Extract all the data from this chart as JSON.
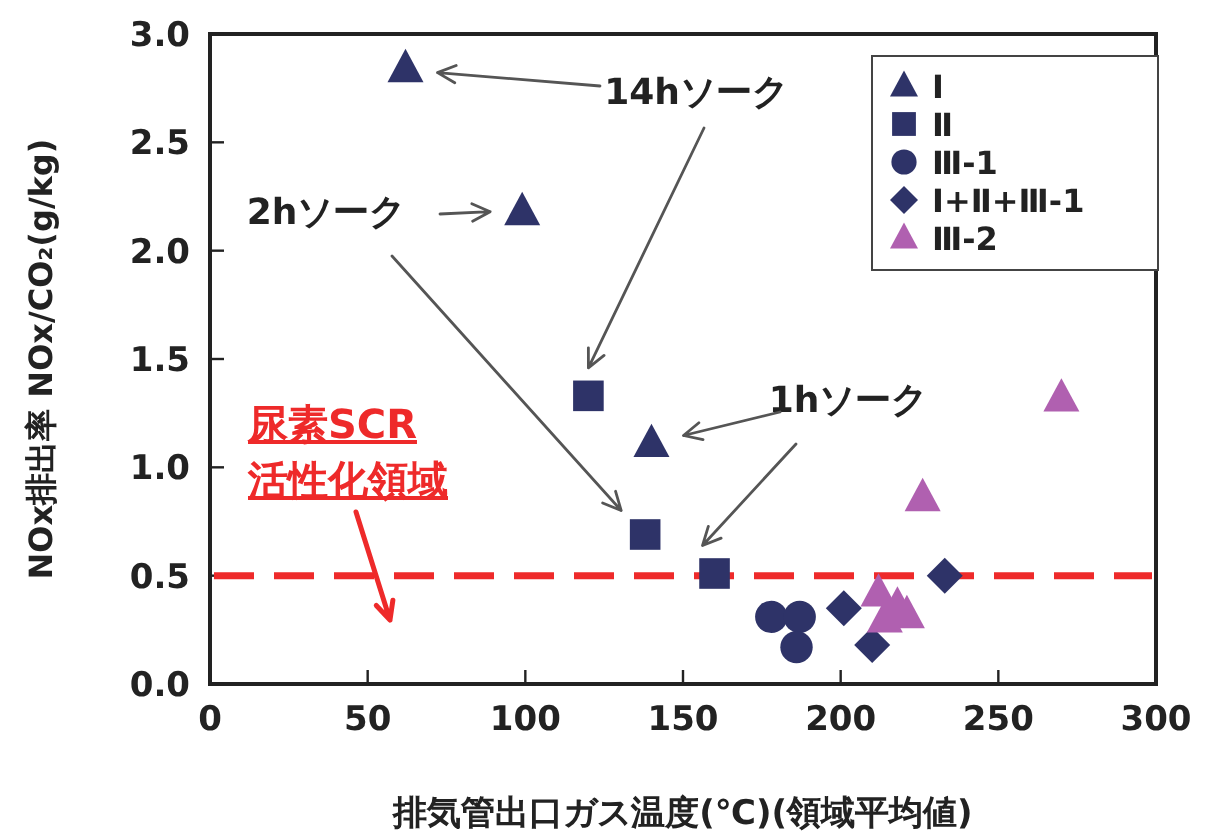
{
  "chart_data": {
    "type": "scatter",
    "xlabel": "排気管出口ガス温度(℃)(領域平均値)",
    "ylabel": "NOx排出率 NOx/CO₂(g/kg)",
    "xlim": [
      0,
      300
    ],
    "xticks": [
      0,
      50,
      100,
      150,
      200,
      250,
      300
    ],
    "ylim": [
      0,
      3
    ],
    "yticks": [
      {
        "value": 0,
        "label": "0.0"
      },
      {
        "value": 0.5,
        "label": "0.5"
      },
      {
        "value": 1,
        "label": "1.0"
      },
      {
        "value": 1.5,
        "label": "1.5"
      },
      {
        "value": 2,
        "label": "2.0"
      },
      {
        "value": 2.5,
        "label": "2.5"
      },
      {
        "value": 3,
        "label": "3.0"
      }
    ],
    "grid": false,
    "legend": "top right",
    "series": [
      {
        "name": "Ⅰ",
        "color": "#2e3368",
        "marker": "triangle",
        "x": [
          62,
          99,
          140
        ],
        "values": [
          2.84,
          2.18,
          1.11
        ]
      },
      {
        "name": "Ⅱ",
        "color": "#2e3368",
        "marker": "square",
        "x": [
          120,
          138,
          160
        ],
        "values": [
          1.33,
          0.69,
          0.51
        ]
      },
      {
        "name": "Ⅲ-1",
        "color": "#2e3368",
        "marker": "circle",
        "x": [
          178,
          187,
          186
        ],
        "values": [
          0.31,
          0.31,
          0.17
        ]
      },
      {
        "name": "Ⅰ+Ⅱ+Ⅲ-1",
        "color": "#2e3368",
        "marker": "diamond",
        "x": [
          201,
          210,
          233
        ],
        "values": [
          0.35,
          0.18,
          0.5
        ]
      },
      {
        "name": "Ⅲ-2",
        "color": "#b060b0",
        "marker": "triangle",
        "x": [
          270,
          226,
          212,
          214,
          218,
          221
        ],
        "values": [
          1.32,
          0.86,
          0.42,
          0.3,
          0.36,
          0.32
        ]
      }
    ],
    "ref_lines": [
      {
        "axis": "y",
        "value": 0.5,
        "color": "#ee2a2a",
        "line_style": "dashed"
      }
    ],
    "annotations": [
      "14hソーク",
      "2hソーク",
      "1hソーク",
      "尿素SCR\n活性化領域"
    ]
  }
}
